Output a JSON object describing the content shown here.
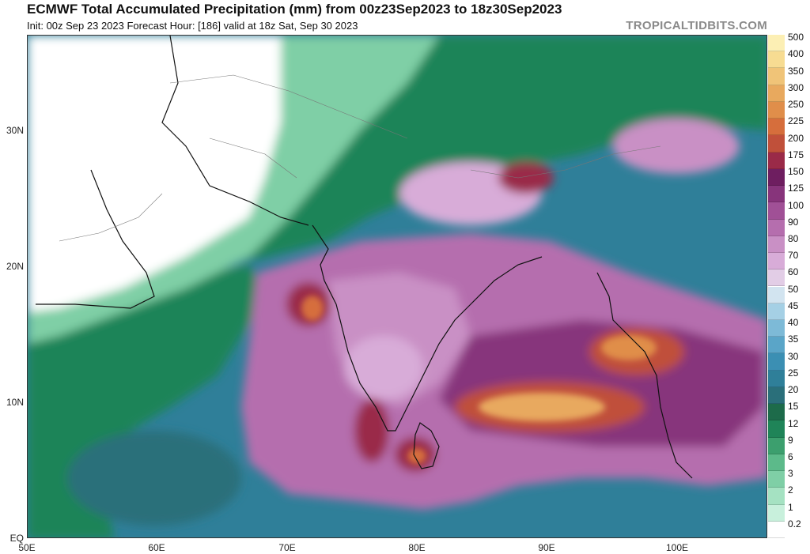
{
  "header": {
    "title": "ECMWF Total Accumulated Precipitation (mm) from 00z23Sep2023 to 18z30Sep2023",
    "subtitle": "Init: 00z Sep 23 2023   Forecast Hour: [186]   valid at 18z Sat, Sep 30 2023",
    "brand": "TROPICALTIDBITS.COM"
  },
  "map": {
    "lat_labels": [
      "30N",
      "20N",
      "10N",
      "EQ"
    ],
    "lon_labels": [
      "50E",
      "60E",
      "70E",
      "80E",
      "90E",
      "100E"
    ]
  },
  "colorbar": {
    "levels": [
      "0.2",
      "1",
      "2",
      "3",
      "6",
      "9",
      "12",
      "15",
      "20",
      "25",
      "30",
      "35",
      "40",
      "45",
      "50",
      "60",
      "70",
      "80",
      "90",
      "100",
      "125",
      "150",
      "175",
      "200",
      "225",
      "250",
      "300",
      "350",
      "400",
      "500"
    ],
    "colors": [
      "#ffffff",
      "#c8f0dc",
      "#a5e2c2",
      "#7fcfa6",
      "#5cba8a",
      "#3c9f6e",
      "#1f8458",
      "#1d6b4a",
      "#2a6f7a",
      "#2f7f99",
      "#3b8fb3",
      "#5aa5c8",
      "#7dbad7",
      "#a5d0e5",
      "#d2e4f0",
      "#e2cde6",
      "#d8acd8",
      "#c990c5",
      "#b56eae",
      "#a05096",
      "#87347b",
      "#6e1e60",
      "#9a2a48",
      "#c0503a",
      "#d66e3c",
      "#e08e4a",
      "#e8a95e",
      "#f0c478",
      "#f7dc92",
      "#fcefb4"
    ]
  }
}
